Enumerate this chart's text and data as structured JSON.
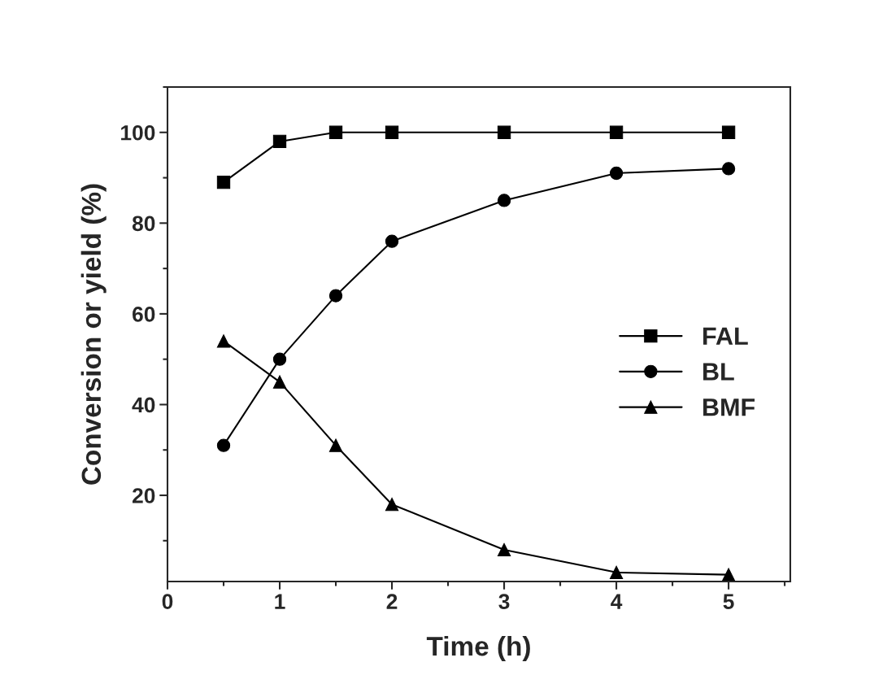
{
  "chart_data": {
    "type": "line",
    "xlabel": "Time (h)",
    "ylabel": "Conversion or yield (%)",
    "x": [
      0.5,
      1,
      1.5,
      2,
      3,
      4,
      5
    ],
    "series": [
      {
        "name": "FAL",
        "color": "#000000",
        "marker": "square",
        "values": [
          89,
          98,
          100,
          100,
          100,
          100,
          100
        ]
      },
      {
        "name": "BL",
        "color": "#000000",
        "marker": "circle",
        "values": [
          31,
          50,
          64,
          76,
          85,
          91,
          92
        ]
      },
      {
        "name": "BMF",
        "color": "#000000",
        "marker": "triangle",
        "values": [
          54,
          45,
          31,
          18,
          8,
          3,
          2.5
        ]
      }
    ],
    "xlim": [
      0,
      5.55
    ],
    "xticks": [
      0,
      1,
      2,
      3,
      4,
      5
    ],
    "ylim": [
      1,
      110
    ],
    "yticks": [
      20,
      40,
      60,
      80,
      100
    ],
    "grid": false,
    "legend": "right",
    "line_style": "solid"
  }
}
